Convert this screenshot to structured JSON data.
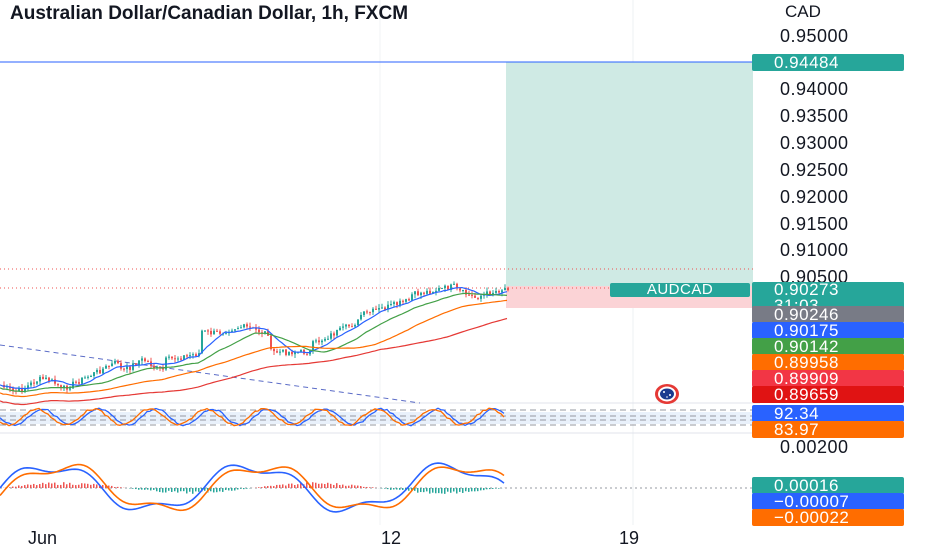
{
  "header": {
    "title": "Australian Dollar/Canadian Dollar, 1h, FXCM"
  },
  "axis": {
    "currency": "CAD",
    "price_ticks": [
      "0.95000",
      "0.94000",
      "0.93500",
      "0.93000",
      "0.92500",
      "0.92000",
      "0.91500",
      "0.91000",
      "0.90500"
    ],
    "osc_tick": "0.00200",
    "x_labels": [
      "Jun",
      "12",
      "19"
    ]
  },
  "badges": {
    "target": "0.94484",
    "symbol": "AUDCAD",
    "last_price": "0.90273",
    "countdown": "31:03",
    "entry": "0.90246",
    "ma1": "0.90175",
    "ma2": "0.90142",
    "ma3": "0.89958",
    "ma4": "0.89909",
    "ma5": "0.89659",
    "rsi1": "92.34",
    "rsi2": "83.97",
    "macd_hist": "0.00016",
    "macd_line": "−0.00007",
    "macd_signal": "−0.00022"
  },
  "colors": {
    "up": "#26a69a",
    "down": "#ef5350",
    "blue": "#2962ff",
    "orange": "#ff6d00",
    "green": "#43a047",
    "red": "#e53935",
    "target_line": "#2962ff",
    "profit_zone": "#cfeae4",
    "loss_zone": "#fbd3d6"
  },
  "icons": {
    "flag": "australia-flag-icon"
  }
}
